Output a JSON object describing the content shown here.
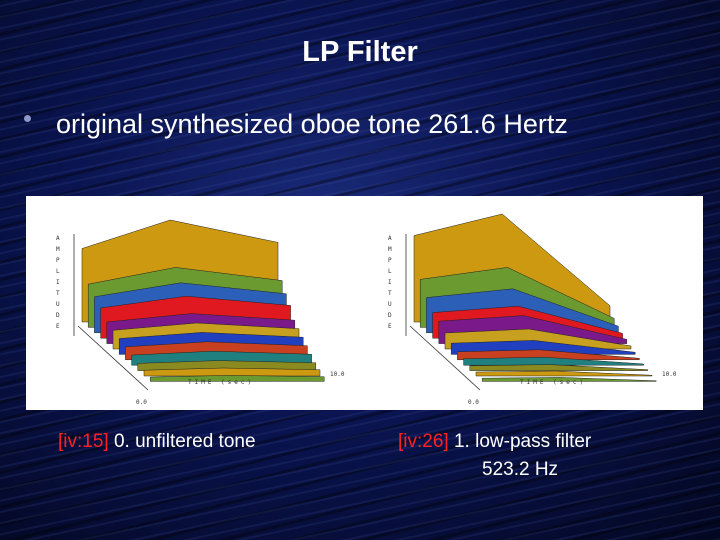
{
  "slide": {
    "title": "LP Filter",
    "bullet": "original synthesized oboe tone 261.6 Hertz"
  },
  "figures": [
    {
      "caption_ref": "[iv:15]",
      "caption_text": "0. unfiltered tone",
      "caption_text2": ""
    },
    {
      "caption_ref": "[iv:26]",
      "caption_text": "1. low-pass filter",
      "caption_text2": "523.2 Hz"
    }
  ],
  "plot_labels": {
    "time_axis": "TIME (sec)",
    "start": "0.0",
    "end": "10.0",
    "amp_axis": "AMPLITUDE"
  },
  "colors": {
    "title": "#ffffff",
    "reference": "#ff2020",
    "harmonics": [
      "#cc9910",
      "#6a9a30",
      "#2c60b8",
      "#e01820",
      "#7a1a8a",
      "#c8a020",
      "#2040c0",
      "#c84020",
      "#208080",
      "#8a8a20"
    ]
  }
}
